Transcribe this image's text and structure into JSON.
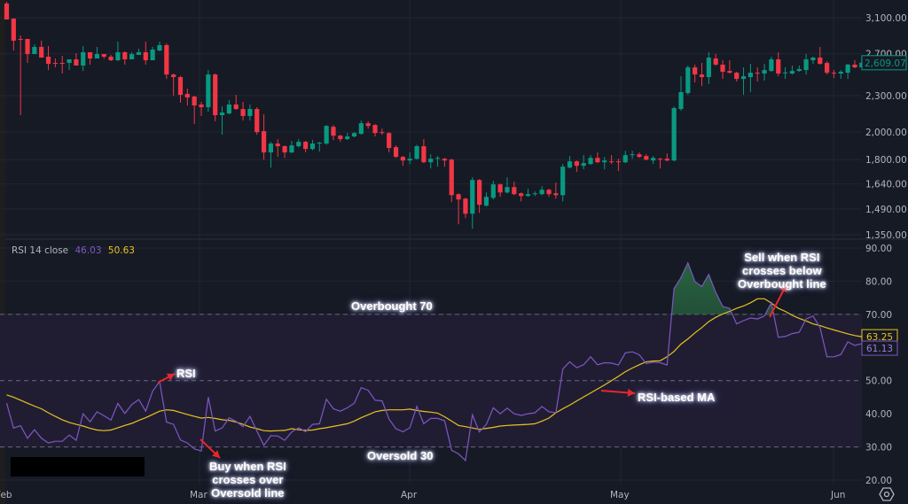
{
  "legend": {
    "indicator": "RSI 14 close",
    "rsi_value": "46.03",
    "ma_value": "50.63"
  },
  "colors": {
    "background": "#161a25",
    "up": "#089981",
    "down": "#f23645",
    "rsi": "#7e57c2",
    "ma": "#e8c31e",
    "band": "#201d33",
    "overbought_fill": "#1f5a35",
    "arrow": "#e8262b",
    "last_price": "#089981"
  },
  "annotations": {
    "overbought": "Overbought 70",
    "oversold": "Oversold 30",
    "rsi": "RSI",
    "rsi_ma": "RSI-based MA",
    "buy": [
      "Buy when RSI",
      "crosses over",
      "Oversold line"
    ],
    "sell": [
      "Sell when RSI",
      "crosses below",
      "Overbought line"
    ]
  },
  "chart_data": [
    {
      "type": "candlestick",
      "y_scale": "log",
      "ylim": [
        1350,
        3100
      ],
      "yticks": [
        "3,100.00",
        "2,700.00",
        "2,300.00",
        "2,000.00",
        "1,800.00",
        "1,640.00",
        "1,490.00",
        "1,350.00"
      ],
      "ytick_values": [
        3100,
        2700,
        2300,
        2000,
        1800,
        1640,
        1490,
        1350
      ],
      "last_price_label": "2,609.07",
      "xticks": [
        "Feb",
        "Mar",
        "Apr",
        "May",
        "Jun"
      ],
      "grid": true,
      "ohlc": [
        [
          3273,
          3296,
          3079,
          3079
        ],
        [
          3090,
          3090,
          2734,
          2839
        ],
        [
          2858,
          2896,
          2134,
          2850
        ],
        [
          2858,
          2858,
          2607,
          2697
        ],
        [
          2697,
          2800,
          2697,
          2772
        ],
        [
          2772,
          2839,
          2661,
          2661
        ],
        [
          2670,
          2781,
          2537,
          2598
        ],
        [
          2607,
          2652,
          2563,
          2604
        ],
        [
          2607,
          2679,
          2503,
          2598
        ],
        [
          2607,
          2643,
          2537,
          2643
        ],
        [
          2643,
          2706,
          2581,
          2581
        ],
        [
          2581,
          2781,
          2528,
          2716
        ],
        [
          2716,
          2716,
          2590,
          2652
        ],
        [
          2652,
          2772,
          2652,
          2697
        ],
        [
          2697,
          2697,
          2652,
          2670
        ],
        [
          2670,
          2688,
          2625,
          2634
        ],
        [
          2634,
          2829,
          2625,
          2716
        ],
        [
          2716,
          2725,
          2590,
          2643
        ],
        [
          2643,
          2716,
          2643,
          2697
        ],
        [
          2688,
          2753,
          2688,
          2716
        ],
        [
          2716,
          2829,
          2590,
          2634
        ],
        [
          2634,
          2772,
          2634,
          2744
        ],
        [
          2734,
          2829,
          2725,
          2791
        ],
        [
          2791,
          2810,
          2452,
          2494
        ],
        [
          2494,
          2503,
          2300,
          2469
        ],
        [
          2469,
          2480,
          2238,
          2307
        ],
        [
          2315,
          2362,
          2215,
          2284
        ],
        [
          2292,
          2300,
          2062,
          2215
        ],
        [
          2223,
          2246,
          2127,
          2200
        ],
        [
          2200,
          2537,
          2163,
          2494
        ],
        [
          2494,
          2503,
          2084,
          2134
        ],
        [
          2134,
          2207,
          1980,
          2156
        ],
        [
          2149,
          2261,
          2140,
          2223
        ],
        [
          2223,
          2307,
          2178,
          2185
        ],
        [
          2185,
          2246,
          2091,
          2127
        ],
        [
          2127,
          2223,
          2091,
          2185
        ],
        [
          2185,
          2200,
          1980,
          2000
        ],
        [
          2007,
          2141,
          1800,
          1850
        ],
        [
          1850,
          1927,
          1746,
          1914
        ],
        [
          1914,
          1947,
          1819,
          1895
        ],
        [
          1895,
          1901,
          1812,
          1850
        ],
        [
          1850,
          1934,
          1845,
          1901
        ],
        [
          1895,
          1947,
          1885,
          1927
        ],
        [
          1927,
          1934,
          1850,
          1875
        ],
        [
          1875,
          1940,
          1865,
          1914
        ],
        [
          1914,
          1927,
          1856,
          1921
        ],
        [
          1914,
          2055,
          1905,
          2048
        ],
        [
          2041,
          2055,
          1940,
          1973
        ],
        [
          1973,
          1980,
          1927,
          1947
        ],
        [
          1947,
          1993,
          1940,
          1967
        ],
        [
          1967,
          2000,
          1960,
          1993
        ],
        [
          1987,
          2091,
          1980,
          2069
        ],
        [
          2069,
          2084,
          2027,
          2048
        ],
        [
          2055,
          2062,
          1967,
          1993
        ],
        [
          2000,
          2027,
          1980,
          1993
        ],
        [
          1993,
          2000,
          1850,
          1882
        ],
        [
          1888,
          1901,
          1812,
          1819
        ],
        [
          1819,
          1825,
          1758,
          1794
        ],
        [
          1794,
          1850,
          1770,
          1806
        ],
        [
          1806,
          1905,
          1800,
          1895
        ],
        [
          1895,
          1947,
          1776,
          1782
        ],
        [
          1782,
          1837,
          1740,
          1806
        ],
        [
          1806,
          1825,
          1752,
          1812
        ],
        [
          1806,
          1812,
          1752,
          1794
        ],
        [
          1800,
          1806,
          1529,
          1571
        ],
        [
          1577,
          1582,
          1405,
          1545
        ],
        [
          1550,
          1555,
          1439,
          1463
        ],
        [
          1463,
          1682,
          1381,
          1665
        ],
        [
          1665,
          1671,
          1468,
          1514
        ],
        [
          1509,
          1587,
          1503,
          1561
        ],
        [
          1555,
          1660,
          1545,
          1637
        ],
        [
          1637,
          1643,
          1561,
          1587
        ],
        [
          1587,
          1682,
          1582,
          1620
        ],
        [
          1620,
          1654,
          1571,
          1577
        ],
        [
          1582,
          1587,
          1534,
          1566
        ],
        [
          1566,
          1610,
          1561,
          1577
        ],
        [
          1577,
          1593,
          1566,
          1582
        ],
        [
          1577,
          1626,
          1571,
          1604
        ],
        [
          1604,
          1610,
          1561,
          1577
        ],
        [
          1582,
          1648,
          1550,
          1571
        ],
        [
          1571,
          1770,
          1534,
          1752
        ],
        [
          1746,
          1825,
          1740,
          1788
        ],
        [
          1788,
          1794,
          1717,
          1758
        ],
        [
          1758,
          1831,
          1734,
          1776
        ],
        [
          1770,
          1831,
          1764,
          1812
        ],
        [
          1812,
          1850,
          1776,
          1782
        ],
        [
          1782,
          1819,
          1734,
          1794
        ],
        [
          1788,
          1831,
          1770,
          1786
        ],
        [
          1788,
          1806,
          1723,
          1782
        ],
        [
          1782,
          1862,
          1776,
          1831
        ],
        [
          1831,
          1862,
          1806,
          1837
        ],
        [
          1837,
          1850,
          1812,
          1819
        ],
        [
          1825,
          1837,
          1794,
          1800
        ],
        [
          1794,
          1825,
          1770,
          1812
        ],
        [
          1806,
          1812,
          1740,
          1804
        ],
        [
          1806,
          1843,
          1788,
          1794
        ],
        [
          1794,
          2207,
          1788,
          2193
        ],
        [
          2185,
          2477,
          2170,
          2331
        ],
        [
          2323,
          2581,
          2307,
          2563
        ],
        [
          2563,
          2590,
          2419,
          2494
        ],
        [
          2494,
          2607,
          2386,
          2469
        ],
        [
          2469,
          2716,
          2403,
          2661
        ],
        [
          2652,
          2697,
          2581,
          2590
        ],
        [
          2590,
          2634,
          2452,
          2520
        ],
        [
          2528,
          2634,
          2503,
          2511
        ],
        [
          2511,
          2520,
          2427,
          2452
        ],
        [
          2452,
          2563,
          2307,
          2477
        ],
        [
          2469,
          2598,
          2331,
          2511
        ],
        [
          2511,
          2563,
          2427,
          2503
        ],
        [
          2503,
          2598,
          2436,
          2537
        ],
        [
          2528,
          2670,
          2520,
          2643
        ],
        [
          2643,
          2716,
          2477,
          2503
        ],
        [
          2511,
          2563,
          2452,
          2514
        ],
        [
          2503,
          2581,
          2494,
          2528
        ],
        [
          2528,
          2581,
          2520,
          2546
        ],
        [
          2537,
          2697,
          2494,
          2643
        ],
        [
          2634,
          2670,
          2598,
          2661
        ],
        [
          2661,
          2772,
          2590,
          2598
        ],
        [
          2607,
          2625,
          2494,
          2511
        ],
        [
          2511,
          2537,
          2461,
          2509
        ],
        [
          2503,
          2537,
          2452,
          2520
        ],
        [
          2511,
          2598,
          2452,
          2590
        ],
        [
          2590,
          2634,
          2555,
          2563
        ],
        [
          2563,
          2661,
          2563,
          2609.07
        ]
      ]
    },
    {
      "type": "line",
      "ylim": [
        20,
        90
      ],
      "yticks": [
        "90.00",
        "80.00",
        "70.00",
        "50.00",
        "40.00",
        "30.00",
        "20.00"
      ],
      "ytick_values": [
        90,
        80,
        70,
        50,
        40,
        30,
        20
      ],
      "levels": {
        "overbought": 70,
        "middle": 50,
        "oversold": 30
      },
      "last_labels": {
        "ma": "63.25",
        "rsi": "61.13"
      },
      "series": [
        {
          "name": "RSI",
          "values": [
            43.2,
            35.7,
            36.4,
            32.6,
            35.2,
            32.6,
            31.2,
            31.7,
            31.7,
            33.6,
            32.0,
            40.0,
            37.6,
            40.6,
            39.4,
            38.1,
            43.1,
            40.1,
            42.8,
            44.3,
            40.8,
            46.8,
            49.7,
            37.5,
            36.8,
            32.1,
            31.2,
            29.4,
            28.8,
            45.0,
            34.8,
            35.7,
            38.8,
            37.7,
            36.1,
            39.2,
            34.8,
            30.5,
            33.4,
            33.3,
            32.0,
            34.5,
            35.8,
            34.6,
            36.8,
            37.0,
            44.4,
            41.5,
            40.8,
            41.8,
            43.2,
            47.9,
            47.1,
            44.1,
            43.9,
            38.4,
            35.5,
            34.6,
            35.8,
            42.2,
            37.0,
            38.6,
            38.6,
            37.9,
            29.0,
            27.9,
            25.9,
            39.7,
            34.5,
            36.8,
            41.8,
            40.0,
            41.7,
            40.0,
            39.5,
            40.0,
            40.3,
            42.2,
            40.6,
            40.3,
            53.5,
            55.7,
            53.9,
            54.8,
            57.2,
            54.8,
            55.4,
            55.3,
            54.7,
            58.4,
            58.7,
            57.8,
            55.1,
            55.6,
            55.4,
            54.7,
            77.7,
            81.1,
            85.5,
            79.9,
            78.4,
            82.0,
            76.6,
            72.4,
            71.8,
            67.1,
            68.1,
            68.9,
            68.6,
            69.5,
            73.5,
            63.1,
            63.3,
            64.2,
            64.6,
            68.6,
            69.5,
            66.0,
            57.2,
            57.2,
            57.9,
            61.7,
            60.6,
            61.13
          ]
        },
        {
          "name": "RSI-based MA",
          "values": [
            45.7,
            45.0,
            44.1,
            43.2,
            42.3,
            41.5,
            40.3,
            39.2,
            38.2,
            37.4,
            36.8,
            36.3,
            35.6,
            35.1,
            34.9,
            35.1,
            35.8,
            36.5,
            37.1,
            38.0,
            38.8,
            39.8,
            40.8,
            41.2,
            41.0,
            40.4,
            39.8,
            39.2,
            38.7,
            38.9,
            38.6,
            38.2,
            38.0,
            37.5,
            36.8,
            36.0,
            35.5,
            34.9,
            34.8,
            34.9,
            35.0,
            35.5,
            35.2,
            35.0,
            35.1,
            35.5,
            35.8,
            36.2,
            36.6,
            37.0,
            37.8,
            38.8,
            39.7,
            40.6,
            41.0,
            41.2,
            41.2,
            41.2,
            41.4,
            41.0,
            40.7,
            40.5,
            40.2,
            39.1,
            37.8,
            36.5,
            36.1,
            35.7,
            35.3,
            35.6,
            35.9,
            36.3,
            36.5,
            36.6,
            36.7,
            36.8,
            37.0,
            37.8,
            38.7,
            40.3,
            41.5,
            42.6,
            43.9,
            45.1,
            46.3,
            47.5,
            48.7,
            50.0,
            51.3,
            52.7,
            53.8,
            54.8,
            55.7,
            55.9,
            56.0,
            57.2,
            58.8,
            61.0,
            62.6,
            64.4,
            66.0,
            67.8,
            69.1,
            70.1,
            70.9,
            71.8,
            72.5,
            73.5,
            74.7,
            74.7,
            73.4,
            71.8,
            70.9,
            69.7,
            68.8,
            68.0,
            67.1,
            66.6,
            65.9,
            65.3,
            64.7,
            64.1,
            63.6,
            63.25
          ]
        }
      ]
    }
  ]
}
